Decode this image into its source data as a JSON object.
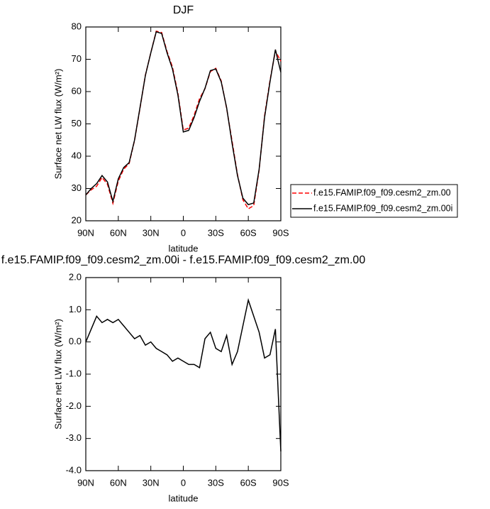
{
  "chart_data": [
    {
      "type": "line",
      "title": "DJF",
      "xlabel": "latitude",
      "ylabel": "Surface net LW flux (W/m²)",
      "x": [
        90,
        85,
        80,
        75,
        70,
        65,
        60,
        55,
        50,
        45,
        40,
        35,
        30,
        25,
        20,
        15,
        10,
        5,
        0,
        -5,
        -10,
        -15,
        -20,
        -25,
        -30,
        -35,
        -40,
        -45,
        -50,
        -55,
        -60,
        -65,
        -70,
        -75,
        -80,
        -85,
        -90
      ],
      "xlim": [
        90,
        -90
      ],
      "xticks": [
        {
          "value": 90,
          "label": "90N"
        },
        {
          "value": 60,
          "label": "60N"
        },
        {
          "value": 30,
          "label": "30N"
        },
        0,
        {
          "value": -30,
          "label": "30S"
        },
        {
          "value": -60,
          "label": "60S"
        },
        {
          "value": -90,
          "label": "90S"
        }
      ],
      "ylim": [
        20,
        80
      ],
      "yticks": [
        20,
        30,
        40,
        50,
        60,
        70,
        80
      ],
      "series": [
        {
          "name": "f.e15.FAMIP.f09_f09.cesm2_zm.00",
          "color": "#ff0000",
          "dashed": true,
          "values": [
            28,
            29.6,
            30.7,
            33.4,
            31.3,
            25.4,
            32.3,
            36,
            37.7,
            44.9,
            54.8,
            65.1,
            72,
            78.7,
            78.3,
            72.4,
            67.6,
            59.5,
            48.1,
            48.7,
            52.7,
            57.8,
            60.9,
            66.2,
            67.2,
            63.3,
            54.8,
            44.7,
            34.3,
            26.5,
            23.7,
            24.7,
            35.7,
            52.5,
            63.4,
            72.6,
            69.4
          ]
        },
        {
          "name": "f.e15.FAMIP.f09_f09.cesm2_zm.00i",
          "color": "#000000",
          "dashed": false,
          "values": [
            28,
            30,
            31.5,
            34,
            32,
            26,
            33,
            36.5,
            38,
            45,
            55,
            65,
            72,
            78.5,
            78,
            72,
            67,
            59,
            47.5,
            48,
            52,
            57,
            61,
            66.5,
            67,
            63,
            55,
            44,
            34,
            27,
            25,
            25.5,
            36,
            52,
            63,
            73,
            66
          ]
        }
      ]
    },
    {
      "type": "line",
      "title": "f.e15.FAMIP.f09_f09.cesm2_zm.00i - f.e15.FAMIP.f09_f09.cesm2_zm.00",
      "xlabel": "latitude",
      "ylabel": "Surface net LW flux (W/m²)",
      "x": [
        90,
        85,
        80,
        75,
        70,
        65,
        60,
        55,
        50,
        45,
        40,
        35,
        30,
        25,
        20,
        15,
        10,
        5,
        0,
        -5,
        -10,
        -15,
        -20,
        -25,
        -30,
        -35,
        -40,
        -45,
        -50,
        -55,
        -60,
        -65,
        -70,
        -75,
        -80,
        -85,
        -90
      ],
      "xlim": [
        90,
        -90
      ],
      "xticks": [
        {
          "value": 90,
          "label": "90N"
        },
        {
          "value": 60,
          "label": "60N"
        },
        {
          "value": 30,
          "label": "30N"
        },
        0,
        {
          "value": -30,
          "label": "30S"
        },
        {
          "value": -60,
          "label": "60S"
        },
        {
          "value": -90,
          "label": "90S"
        }
      ],
      "ylim": [
        -4,
        2
      ],
      "yticks": [
        {
          "value": -4,
          "label": "-4.0"
        },
        {
          "value": -3,
          "label": "-3.0"
        },
        {
          "value": -2,
          "label": "-2.0"
        },
        {
          "value": -1,
          "label": "-1.0"
        },
        {
          "value": 0,
          "label": "0.0"
        },
        {
          "value": 1,
          "label": "1.0"
        },
        {
          "value": 2,
          "label": "2.0"
        }
      ],
      "series": [
        {
          "color": "#000000",
          "dashed": false,
          "values": [
            0,
            0.4,
            0.8,
            0.6,
            0.7,
            0.6,
            0.7,
            0.5,
            0.3,
            0.1,
            0.2,
            -0.1,
            0,
            -0.2,
            -0.3,
            -0.4,
            -0.6,
            -0.5,
            -0.6,
            -0.7,
            -0.7,
            -0.8,
            0.1,
            0.3,
            -0.2,
            -0.3,
            0.2,
            -0.7,
            -0.3,
            0.5,
            1.3,
            0.8,
            0.3,
            -0.5,
            -0.4,
            0.4,
            -3.4
          ]
        }
      ]
    }
  ]
}
